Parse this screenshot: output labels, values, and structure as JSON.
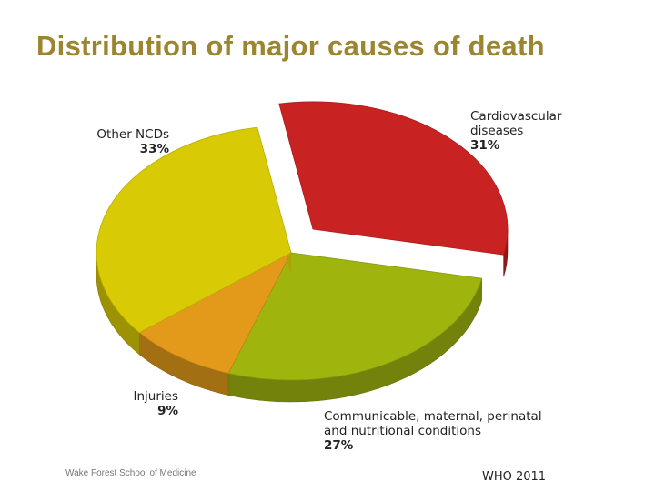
{
  "slide": {
    "title": "Distribution of major causes of death",
    "footer_left": "Wake Forest School of Medicine",
    "footer_right": "WHO 2011"
  },
  "chart_data": {
    "type": "pie",
    "style": "3d-exploded",
    "title": "",
    "categories": [
      "Cardiovascular diseases",
      "Communicable, maternal, perinatal and nutritional conditions",
      "Injuries",
      "Other NCDs"
    ],
    "values": [
      31,
      27,
      9,
      33
    ],
    "value_labels": [
      "31%",
      "27%",
      "9%",
      "33%"
    ],
    "label_lines": [
      [
        "Cardiovascular",
        "diseases"
      ],
      [
        "Communicable, maternal, perinatal",
        "and nutritional conditions"
      ],
      [
        "Injuries"
      ],
      [
        "Other NCDs"
      ]
    ],
    "colors": [
      "#c92222",
      "#9fb50e",
      "#e39a1a",
      "#d8cb05"
    ],
    "exploded": [
      "Cardiovascular diseases"
    ]
  }
}
